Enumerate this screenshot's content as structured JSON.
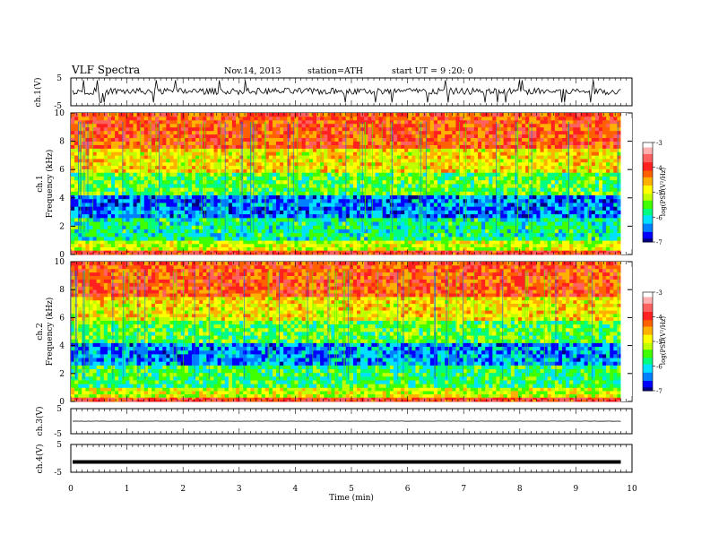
{
  "header": {
    "title": "VLF  Spectra",
    "date": "Nov.14, 2013",
    "station": "station=ATH",
    "start": "start  UT =   9  :20: 0"
  },
  "chart_data": [
    {
      "type": "line",
      "panel": "ch1-waveform",
      "ylabel": "ch.1(V)",
      "ylim": [
        -5,
        5
      ],
      "yticks": [
        "5",
        "-5"
      ],
      "description_values": {
        "baseline": 0.2,
        "noise_amplitude": 1.2,
        "spikes": true
      }
    },
    {
      "type": "heatmap",
      "panel": "ch1-spectrogram",
      "ylabel": [
        "ch.1",
        "Frequency  (kHz)"
      ],
      "ylim": [
        0,
        10
      ],
      "yticks": [
        "0",
        "2",
        "4",
        "6",
        "8",
        "10"
      ],
      "colorbar": {
        "label": "log(PSD(V²/Hz)",
        "min": -7,
        "max": -3,
        "ticks": [
          "-3",
          "-4",
          "-5",
          "-6",
          "-7"
        ]
      },
      "levels_by_frequency_kHz": [
        {
          "from": 0,
          "to": 0.3,
          "log_psd": -3.3
        },
        {
          "from": 0.3,
          "to": 1.0,
          "log_psd": -4.7
        },
        {
          "from": 1.0,
          "to": 2.6,
          "log_psd": -5.6
        },
        {
          "from": 2.6,
          "to": 4.2,
          "log_psd": -6.3
        },
        {
          "from": 4.2,
          "to": 5.8,
          "log_psd": -5.2
        },
        {
          "from": 5.8,
          "to": 7.5,
          "log_psd": -4.4
        },
        {
          "from": 7.5,
          "to": 10,
          "log_psd": -3.6
        }
      ]
    },
    {
      "type": "heatmap",
      "panel": "ch2-spectrogram",
      "ylabel": [
        "ch.2",
        "Frequency  (kHz)"
      ],
      "ylim": [
        0,
        10
      ],
      "yticks": [
        "0",
        "2",
        "4",
        "6",
        "8",
        "10"
      ],
      "colorbar": {
        "label": "log(PSD(V²/Hz)",
        "min": -7,
        "max": -3,
        "ticks": [
          "-3",
          "-4",
          "-5",
          "-6",
          "-7"
        ]
      },
      "levels_by_frequency_kHz": [
        {
          "from": 0,
          "to": 0.3,
          "log_psd": -3.3
        },
        {
          "from": 0.3,
          "to": 1.0,
          "log_psd": -4.7
        },
        {
          "from": 1.0,
          "to": 2.6,
          "log_psd": -5.4
        },
        {
          "from": 2.6,
          "to": 4.2,
          "log_psd": -6.2
        },
        {
          "from": 4.2,
          "to": 5.8,
          "log_psd": -5.2
        },
        {
          "from": 5.8,
          "to": 7.5,
          "log_psd": -4.4
        },
        {
          "from": 7.5,
          "to": 10,
          "log_psd": -3.6
        }
      ]
    },
    {
      "type": "line",
      "panel": "ch3-waveform",
      "ylabel": "ch.3(V)",
      "ylim": [
        -5,
        5
      ],
      "yticks": [
        "5",
        "-5"
      ],
      "description_values": {
        "baseline": 0.0,
        "noise_amplitude": 0.05
      }
    },
    {
      "type": "line",
      "panel": "ch4-waveform",
      "ylabel": "ch.4(V)",
      "ylim": [
        -5,
        5
      ],
      "yticks": [
        "5",
        "-5"
      ],
      "description_values": {
        "baseline": -1.3,
        "noise_amplitude": 0.0
      }
    }
  ],
  "xaxis": {
    "xlabel": "Time  (min)",
    "xlim": [
      0,
      10
    ],
    "ticks": [
      "0",
      "1",
      "2",
      "3",
      "4",
      "5",
      "6",
      "7",
      "8",
      "9",
      "10"
    ],
    "data_end_min": 9.8
  },
  "colors": {
    "scale": [
      "#000080",
      "#0000ff",
      "#0080ff",
      "#00e0ff",
      "#00ff80",
      "#40ff00",
      "#c0ff00",
      "#ffff00",
      "#ffb000",
      "#ff6000",
      "#ff2020",
      "#ff6060",
      "#ffb0b0",
      "#ffffff"
    ]
  }
}
